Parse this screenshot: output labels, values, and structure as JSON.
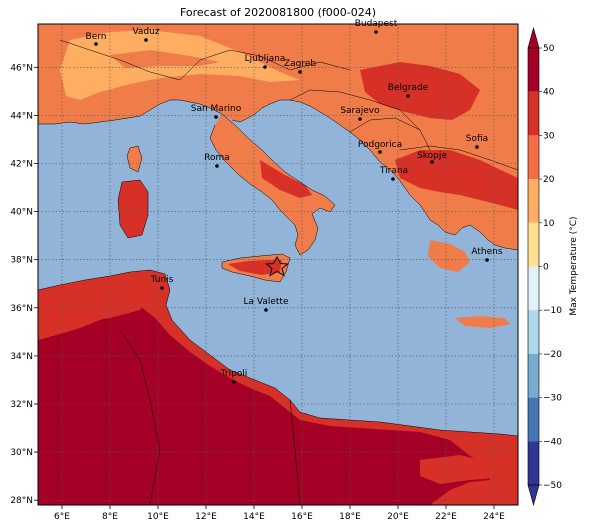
{
  "title": "Forecast of 2020081800 (f000-024)",
  "map": {
    "lon_ticks": [
      "6°E",
      "8°E",
      "10°E",
      "12°E",
      "14°E",
      "16°E",
      "18°E",
      "20°E",
      "22°E",
      "24°E"
    ],
    "lat_ticks": [
      "28°N",
      "30°N",
      "32°N",
      "34°N",
      "36°N",
      "38°N",
      "40°N",
      "42°N",
      "44°N",
      "46°N"
    ],
    "cities": [
      {
        "name": "Bern"
      },
      {
        "name": "Vaduz"
      },
      {
        "name": "Budapest"
      },
      {
        "name": "Ljubljana"
      },
      {
        "name": "Zagreb"
      },
      {
        "name": "Belgrade"
      },
      {
        "name": "San Marino"
      },
      {
        "name": "Sarajevo"
      },
      {
        "name": "Sofia"
      },
      {
        "name": "Podgorica"
      },
      {
        "name": "Skopje"
      },
      {
        "name": "Roma"
      },
      {
        "name": "Tirana"
      },
      {
        "name": "Athens"
      },
      {
        "name": "Tunis"
      },
      {
        "name": "La Valette"
      },
      {
        "name": "Tripoli"
      }
    ],
    "colors": {
      "sea": "#91b4d8",
      "land_20_30": "#f07c4a",
      "land_30_40": "#d73027",
      "land_40_50": "#a50026",
      "land_10_20": "#fdae61"
    }
  },
  "colorbar": {
    "label": "Max Temperature (°C)",
    "ticks": [
      "50",
      "40",
      "30",
      "20",
      "10",
      "0",
      "−10",
      "−20",
      "−30",
      "−40",
      "−50"
    ],
    "colors": [
      "#a50026",
      "#d73027",
      "#f46d43",
      "#fdae61",
      "#fee090",
      "#ffffbf",
      "#e0f3f8",
      "#abd9e9",
      "#74add1",
      "#4575b4",
      "#313695"
    ]
  }
}
